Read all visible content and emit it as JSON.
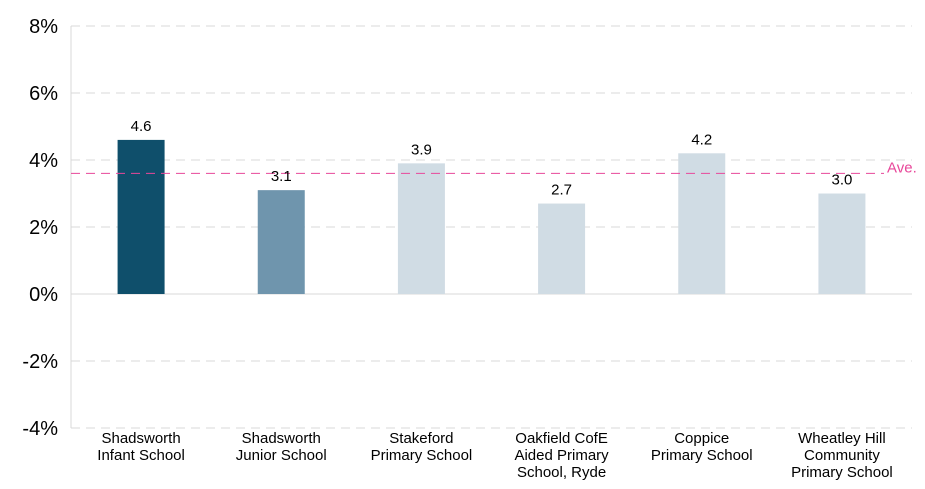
{
  "chart_data": {
    "type": "bar",
    "categories": [
      [
        "Shadsworth",
        "Infant School"
      ],
      [
        "Shadsworth",
        "Junior School"
      ],
      [
        "Stakeford",
        "Primary School"
      ],
      [
        "Oakfield CofE",
        "Aided Primary",
        "School, Ryde"
      ],
      [
        "Coppice",
        "Primary School"
      ],
      [
        "Wheatley Hill",
        "Community",
        "Primary School"
      ]
    ],
    "values": [
      4.6,
      3.1,
      3.9,
      2.7,
      4.2,
      3.0
    ],
    "data_labels": [
      "4.6",
      "3.1",
      "3.9",
      "2.7",
      "4.2",
      "3.0"
    ],
    "ylim": [
      -4,
      8
    ],
    "yticks": [
      -4,
      -2,
      0,
      2,
      4,
      6,
      8
    ],
    "ytick_labels": [
      "-4%",
      "-2%",
      "0%",
      "2%",
      "4%",
      "6%",
      "8%"
    ],
    "grid": true,
    "average": {
      "label": "Ave.",
      "value": 3.6,
      "color": "#e8479a"
    },
    "bar_colors": [
      "#0f4f6b",
      "#6f95ad",
      "#d0dce4",
      "#d0dce4",
      "#d0dce4",
      "#d0dce4"
    ]
  }
}
